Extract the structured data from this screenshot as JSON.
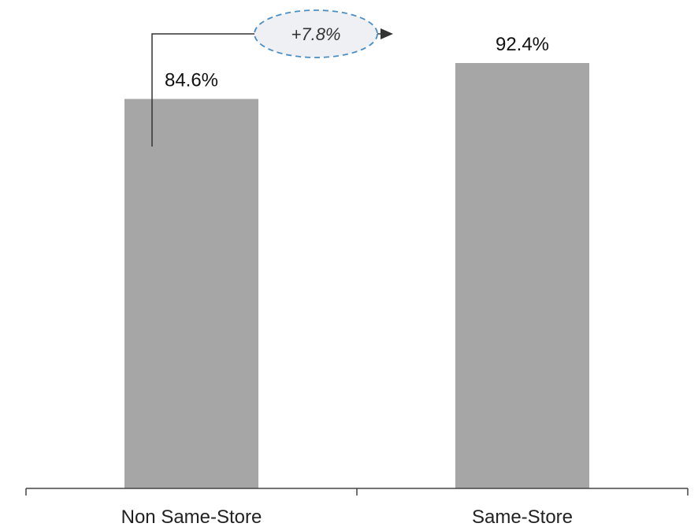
{
  "chart_data": {
    "type": "bar",
    "categories": [
      "Non Same-Store",
      "Same-Store"
    ],
    "values": [
      84.6,
      92.4
    ],
    "value_labels": [
      "84.6%",
      "92.4%"
    ],
    "ylim": [
      0,
      100
    ],
    "grid": false,
    "annotation": {
      "text": "+7.8%",
      "from": "Non Same-Store",
      "to": "Same-Store"
    },
    "colors": {
      "bar": "#a6a6a6",
      "axis": "#444444",
      "arrow": "#333333",
      "bubble_stroke": "#4a8ec6",
      "bubble_fill": "#eef0f3"
    }
  }
}
